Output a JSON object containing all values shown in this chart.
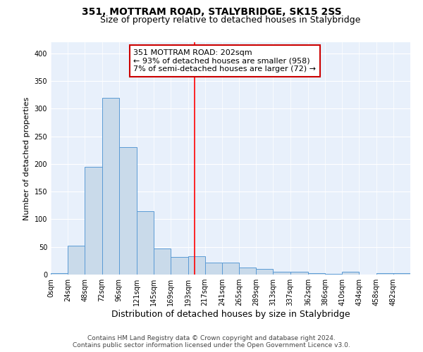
{
  "title": "351, MOTTRAM ROAD, STALYBRIDGE, SK15 2SS",
  "subtitle": "Size of property relative to detached houses in Stalybridge",
  "xlabel": "Distribution of detached houses by size in Stalybridge",
  "ylabel": "Number of detached properties",
  "bar_edges": [
    0,
    24,
    48,
    72,
    96,
    121,
    145,
    169,
    193,
    217,
    241,
    265,
    289,
    313,
    337,
    362,
    386,
    410,
    434,
    458,
    482,
    506
  ],
  "bar_heights": [
    2,
    52,
    195,
    320,
    230,
    115,
    47,
    32,
    33,
    22,
    22,
    13,
    10,
    5,
    5,
    3,
    1,
    5,
    0,
    2,
    2
  ],
  "bar_color": "#c9daea",
  "bar_edge_color": "#5b9bd5",
  "vline_x": 202,
  "vline_color": "#ff0000",
  "annotation_text": "351 MOTTRAM ROAD: 202sqm\n← 93% of detached houses are smaller (958)\n7% of semi-detached houses are larger (72) →",
  "annotation_box_color": "#ffffff",
  "annotation_box_edge": "#cc0000",
  "ylim": [
    0,
    420
  ],
  "yticks": [
    0,
    50,
    100,
    150,
    200,
    250,
    300,
    350,
    400
  ],
  "tick_labels": [
    "0sqm",
    "24sqm",
    "48sqm",
    "72sqm",
    "96sqm",
    "121sqm",
    "145sqm",
    "169sqm",
    "193sqm",
    "217sqm",
    "241sqm",
    "265sqm",
    "289sqm",
    "313sqm",
    "337sqm",
    "362sqm",
    "386sqm",
    "410sqm",
    "434sqm",
    "458sqm",
    "482sqm"
  ],
  "background_color": "#e8f0fb",
  "footer_line1": "Contains HM Land Registry data © Crown copyright and database right 2024.",
  "footer_line2": "Contains public sector information licensed under the Open Government Licence v3.0.",
  "title_fontsize": 10,
  "subtitle_fontsize": 9,
  "xlabel_fontsize": 9,
  "ylabel_fontsize": 8,
  "tick_fontsize": 7,
  "footer_fontsize": 6.5,
  "annotation_fontsize": 8
}
